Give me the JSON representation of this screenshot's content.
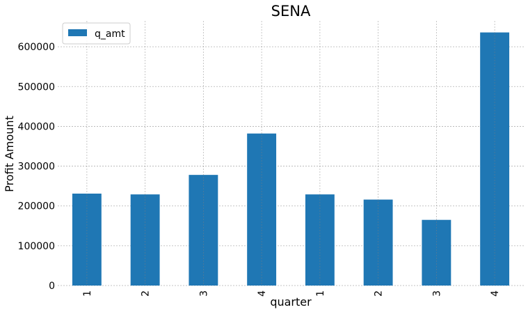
{
  "chart_data": {
    "type": "bar",
    "title": "SENA",
    "xlabel": "quarter",
    "ylabel": "Profit Amount",
    "categories": [
      "1",
      "2",
      "3",
      "4",
      "1",
      "2",
      "3",
      "4"
    ],
    "series": [
      {
        "name": "q_amt",
        "values": [
          231000,
          229000,
          278000,
          382000,
          229000,
          216000,
          165000,
          636000
        ],
        "color": "#1f77b4"
      }
    ],
    "ylim": [
      0,
      665000
    ],
    "yticks": [
      0,
      100000,
      200000,
      300000,
      400000,
      500000,
      600000
    ],
    "ytick_labels": [
      "0",
      "100000",
      "200000",
      "300000",
      "400000",
      "500000",
      "600000"
    ],
    "grid": true,
    "legend_position": "top-left",
    "tick_label_rotation": "vertical"
  }
}
